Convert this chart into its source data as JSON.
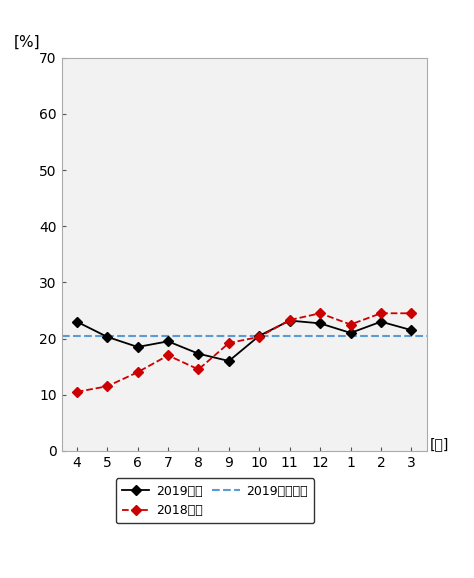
{
  "months": [
    4,
    5,
    6,
    7,
    8,
    9,
    10,
    11,
    12,
    1,
    2,
    3
  ],
  "month_labels": [
    "4",
    "5",
    "6",
    "7",
    "8",
    "9",
    "10",
    "11",
    "12",
    "1",
    "2",
    "3"
  ],
  "series_2019": [
    23.0,
    20.3,
    18.5,
    19.5,
    17.3,
    16.0,
    20.5,
    23.2,
    22.7,
    21.0,
    23.0,
    21.5
  ],
  "series_2018": [
    10.5,
    11.5,
    14.0,
    17.0,
    14.5,
    19.2,
    20.3,
    23.3,
    24.5,
    22.5,
    24.5,
    24.5
  ],
  "avg_2019": 20.5,
  "ylim": [
    0,
    70
  ],
  "yticks": [
    0,
    10,
    20,
    30,
    40,
    50,
    60,
    70
  ],
  "color_2019": "#000000",
  "color_2018": "#cc0000",
  "color_avg": "#5b9bd5",
  "ylabel": "[%]",
  "xlabel": "[月]",
  "legend_2019": "2019年度",
  "legend_2018": "2018年度",
  "legend_avg": "2019年度平均",
  "plot_bg": "#f2f2f2",
  "fig_bg": "#ffffff"
}
